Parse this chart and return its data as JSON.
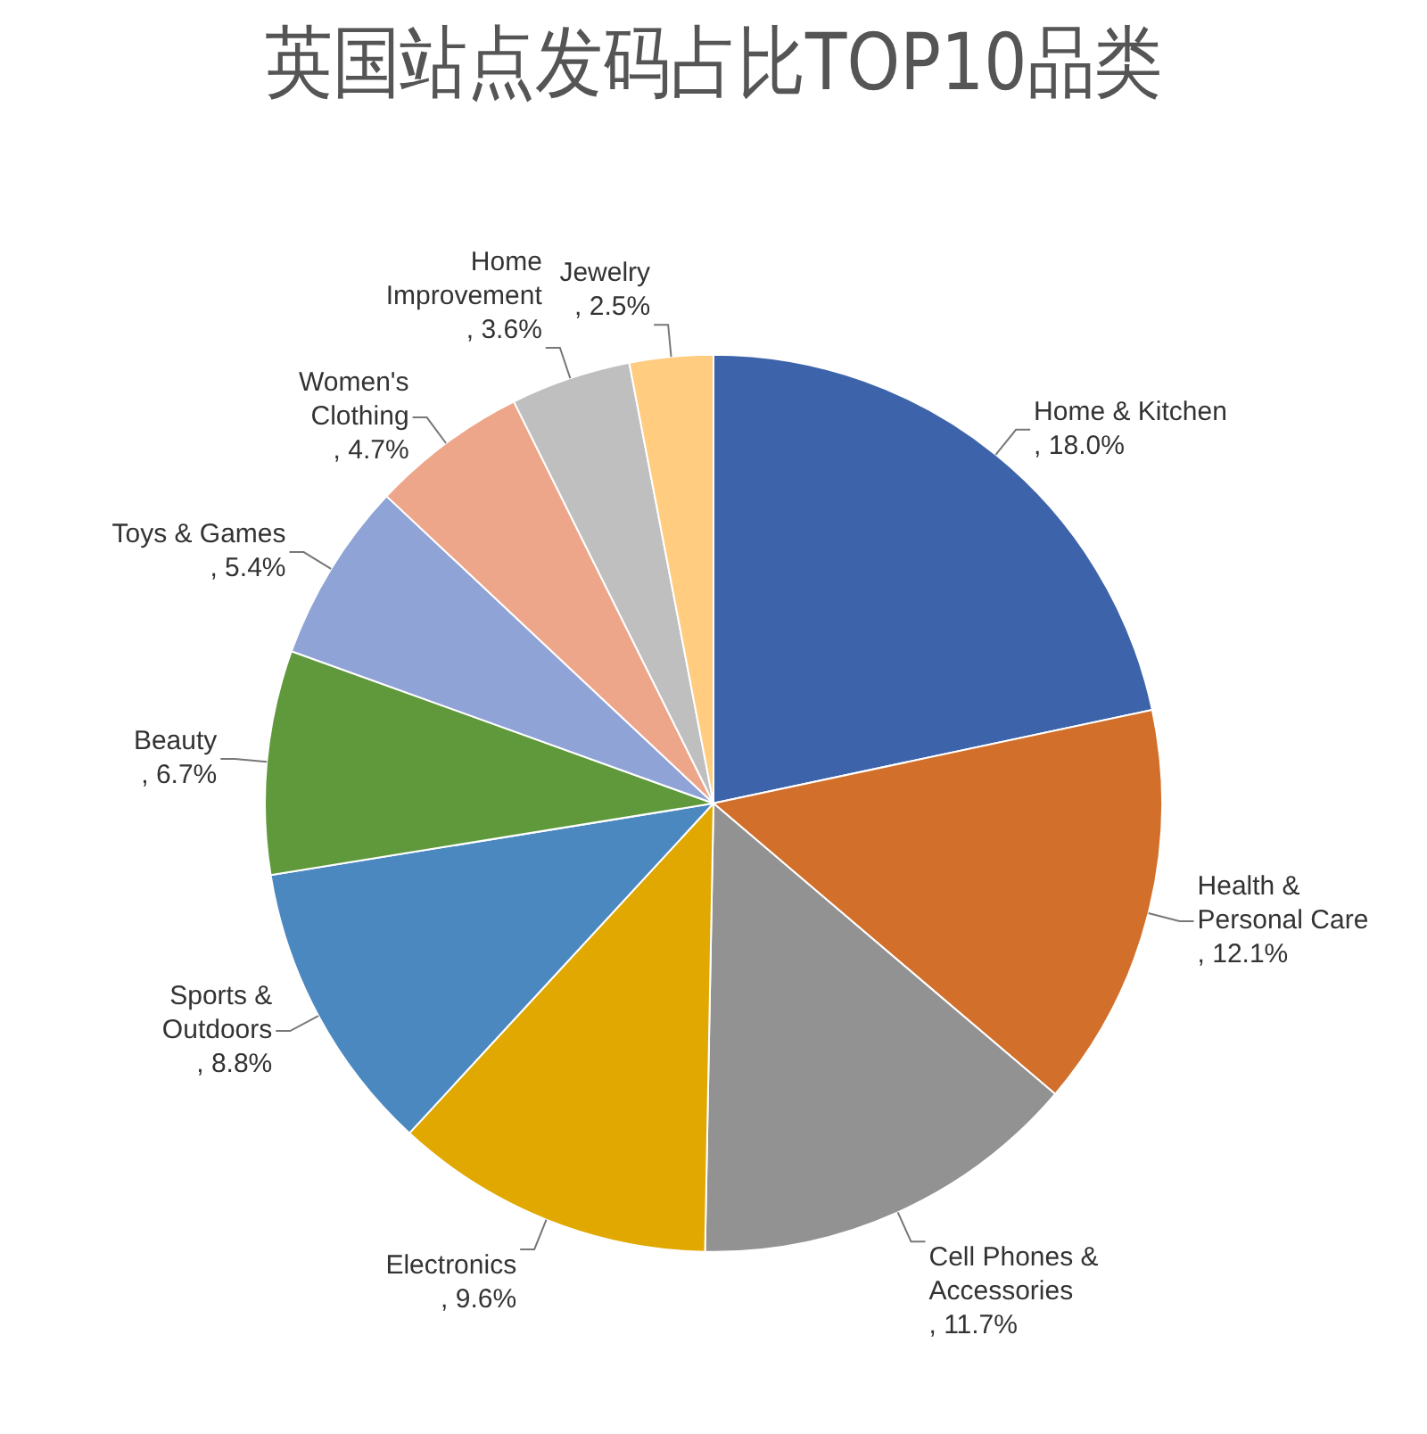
{
  "chart_data": {
    "type": "pie",
    "title": "英国站点发码占比TOP10品类",
    "categories": [
      "Home & Kitchen",
      "Health & Personal Care",
      "Cell Phones & Accessories",
      "Electronics",
      "Sports & Outdoors",
      "Beauty",
      "Toys & Games",
      "Women's Clothing",
      "Home Improvement",
      "Jewelry"
    ],
    "values": [
      18.0,
      12.1,
      11.7,
      9.6,
      8.8,
      6.7,
      5.4,
      4.7,
      3.6,
      2.5
    ],
    "value_labels": [
      ", 18.0%",
      ", 12.1%",
      ", 11.7%",
      ", 9.6%",
      ", 8.8%",
      ", 6.7%",
      ", 5.4%",
      ", 4.7%",
      ", 3.6%",
      ", 2.5%"
    ],
    "colors": [
      "#3d64ab",
      "#d16f2b",
      "#929292",
      "#e0a800",
      "#4c88c0",
      "#5f993c",
      "#8fa3d6",
      "#eda68a",
      "#bfbfbf",
      "#ffcc80"
    ],
    "legend": false
  }
}
